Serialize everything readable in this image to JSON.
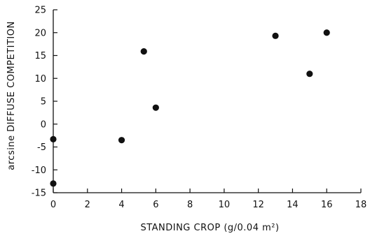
{
  "chart_data": {
    "type": "scatter",
    "title": "",
    "xlabel": "STANDING CROP (g/0.04 m²)",
    "ylabel": "arcsine DIFFUSE COMPETITION",
    "xlim": [
      0,
      18
    ],
    "ylim": [
      -15,
      25
    ],
    "x_ticks": [
      0,
      2,
      4,
      6,
      8,
      10,
      12,
      14,
      16,
      18
    ],
    "y_ticks": [
      25,
      20,
      15,
      10,
      5,
      0,
      -5,
      -10,
      -15
    ],
    "grid": false,
    "legend": "none",
    "point_color": "#111111",
    "points": [
      {
        "x": 0.0,
        "y": -3.3
      },
      {
        "x": 0.0,
        "y": -13.0
      },
      {
        "x": 4.0,
        "y": -3.5
      },
      {
        "x": 5.3,
        "y": 15.9
      },
      {
        "x": 6.0,
        "y": 3.6
      },
      {
        "x": 13.0,
        "y": 19.3
      },
      {
        "x": 15.0,
        "y": 11.0
      },
      {
        "x": 16.0,
        "y": 20.0
      }
    ]
  }
}
